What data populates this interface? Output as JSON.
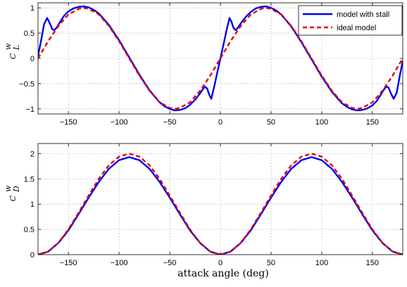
{
  "colors": {
    "stall_series": "#0000ee",
    "ideal_series": "#e00000",
    "axes": "#000000",
    "grid": "#777777",
    "background": "#ffffff"
  },
  "shared_xlabel": "attack angle (deg)",
  "chart_data": [
    {
      "type": "line",
      "ylabel": "C",
      "ylabel_sup": "w",
      "ylabel_sub": "L",
      "xlim": [
        -180,
        180
      ],
      "ylim": [
        -1.1,
        1.1
      ],
      "xticks": [
        -150,
        -100,
        -50,
        0,
        50,
        100,
        150
      ],
      "xtick_labels": [
        "−150",
        "−100",
        "−50",
        "0",
        "50",
        "100",
        "150"
      ],
      "yticks": [
        -1,
        -0.5,
        0,
        0.5,
        1
      ],
      "ytick_labels": [
        "−1",
        "−0.5",
        "0",
        "0.5",
        "1"
      ],
      "grid": true,
      "legend_position": "top-right",
      "series": [
        {
          "name": "model with stall",
          "style": "solid",
          "x": [
            -180,
            -177,
            -174,
            -171,
            -168,
            -166,
            -164,
            -162,
            -160,
            -157,
            -154,
            -150,
            -145,
            -140,
            -135,
            -130,
            -125,
            -120,
            -110,
            -100,
            -90,
            -80,
            -70,
            -60,
            -55,
            -50,
            -45,
            -40,
            -35,
            -30,
            -25,
            -20,
            -17,
            -15,
            -13,
            -11,
            -9,
            -6,
            -3,
            0,
            3,
            6,
            9,
            11,
            13,
            15,
            17,
            20,
            25,
            30,
            35,
            40,
            45,
            50,
            55,
            60,
            70,
            80,
            90,
            100,
            110,
            120,
            125,
            130,
            135,
            140,
            145,
            150,
            154,
            157,
            160,
            162,
            164,
            166,
            168,
            171,
            174,
            177,
            180
          ],
          "y": [
            0.05,
            0.35,
            0.68,
            0.8,
            0.68,
            0.58,
            0.56,
            0.6,
            0.66,
            0.76,
            0.85,
            0.93,
            0.99,
            1.02,
            1.03,
            1.01,
            0.96,
            0.89,
            0.66,
            0.36,
            0.02,
            -0.32,
            -0.63,
            -0.87,
            -0.95,
            -1.0,
            -1.03,
            -1.02,
            -0.99,
            -0.92,
            -0.82,
            -0.69,
            -0.6,
            -0.56,
            -0.6,
            -0.72,
            -0.8,
            -0.55,
            -0.27,
            0.0,
            0.27,
            0.55,
            0.8,
            0.72,
            0.6,
            0.56,
            0.6,
            0.69,
            0.82,
            0.92,
            0.99,
            1.02,
            1.03,
            1.0,
            0.95,
            0.87,
            0.63,
            0.32,
            -0.02,
            -0.36,
            -0.66,
            -0.89,
            -0.96,
            -1.01,
            -1.03,
            -1.02,
            -0.99,
            -0.93,
            -0.85,
            -0.76,
            -0.66,
            -0.6,
            -0.56,
            -0.58,
            -0.68,
            -0.8,
            -0.68,
            -0.35,
            -0.05
          ]
        },
        {
          "name": "ideal model",
          "style": "dashed",
          "x": [
            -180,
            -170,
            -160,
            -150,
            -140,
            -135,
            -130,
            -120,
            -110,
            -100,
            -90,
            -80,
            -70,
            -60,
            -50,
            -45,
            -40,
            -30,
            -20,
            -10,
            0,
            10,
            20,
            30,
            40,
            45,
            50,
            60,
            70,
            80,
            90,
            100,
            110,
            120,
            130,
            135,
            140,
            150,
            160,
            170,
            180
          ],
          "y": [
            0.0,
            0.34,
            0.64,
            0.87,
            0.98,
            1.0,
            0.98,
            0.87,
            0.64,
            0.34,
            0.0,
            -0.34,
            -0.64,
            -0.87,
            -0.98,
            -1.0,
            -0.98,
            -0.87,
            -0.64,
            -0.34,
            0.0,
            0.34,
            0.64,
            0.87,
            0.98,
            1.0,
            0.98,
            0.87,
            0.64,
            0.34,
            0.0,
            -0.34,
            -0.64,
            -0.87,
            -0.98,
            -1.0,
            -0.98,
            -0.87,
            -0.64,
            -0.34,
            0.0
          ]
        }
      ]
    },
    {
      "type": "line",
      "ylabel": "C",
      "ylabel_sup": "w",
      "ylabel_sub": "D",
      "xlabel": "attack angle (deg)",
      "xlim": [
        -180,
        180
      ],
      "ylim": [
        0,
        2.2
      ],
      "xticks": [
        -150,
        -100,
        -50,
        0,
        50,
        100,
        150
      ],
      "xtick_labels": [
        "−150",
        "−100",
        "−50",
        "0",
        "50",
        "100",
        "150"
      ],
      "yticks": [
        0,
        0.5,
        1,
        1.5,
        2
      ],
      "ytick_labels": [
        "0",
        "0.5",
        "1",
        "1.5",
        "2"
      ],
      "grid": true,
      "series": [
        {
          "name": "model with stall",
          "style": "solid",
          "x": [
            -180,
            -170,
            -160,
            -150,
            -140,
            -130,
            -120,
            -110,
            -100,
            -90,
            -80,
            -70,
            -60,
            -50,
            -40,
            -30,
            -20,
            -10,
            0,
            10,
            20,
            30,
            40,
            50,
            60,
            70,
            80,
            90,
            100,
            110,
            120,
            130,
            140,
            150,
            160,
            170,
            180
          ],
          "y": [
            0.0,
            0.06,
            0.23,
            0.48,
            0.8,
            1.13,
            1.44,
            1.7,
            1.87,
            1.93,
            1.87,
            1.7,
            1.44,
            1.13,
            0.8,
            0.48,
            0.23,
            0.06,
            0.0,
            0.06,
            0.23,
            0.48,
            0.8,
            1.13,
            1.44,
            1.7,
            1.87,
            1.93,
            1.87,
            1.7,
            1.44,
            1.13,
            0.8,
            0.48,
            0.23,
            0.06,
            0.0
          ]
        },
        {
          "name": "ideal model",
          "style": "dashed",
          "x": [
            -180,
            -170,
            -160,
            -150,
            -140,
            -130,
            -120,
            -110,
            -100,
            -90,
            -80,
            -70,
            -60,
            -50,
            -40,
            -30,
            -20,
            -10,
            0,
            10,
            20,
            30,
            40,
            50,
            60,
            70,
            80,
            90,
            100,
            110,
            120,
            130,
            140,
            150,
            160,
            170,
            180
          ],
          "y": [
            0.0,
            0.06,
            0.23,
            0.5,
            0.83,
            1.17,
            1.5,
            1.77,
            1.94,
            2.0,
            1.94,
            1.77,
            1.5,
            1.17,
            0.83,
            0.5,
            0.23,
            0.06,
            0.0,
            0.06,
            0.23,
            0.5,
            0.83,
            1.17,
            1.5,
            1.77,
            1.94,
            2.0,
            1.94,
            1.77,
            1.5,
            1.17,
            0.83,
            0.5,
            0.23,
            0.06,
            0.0
          ]
        }
      ]
    }
  ]
}
